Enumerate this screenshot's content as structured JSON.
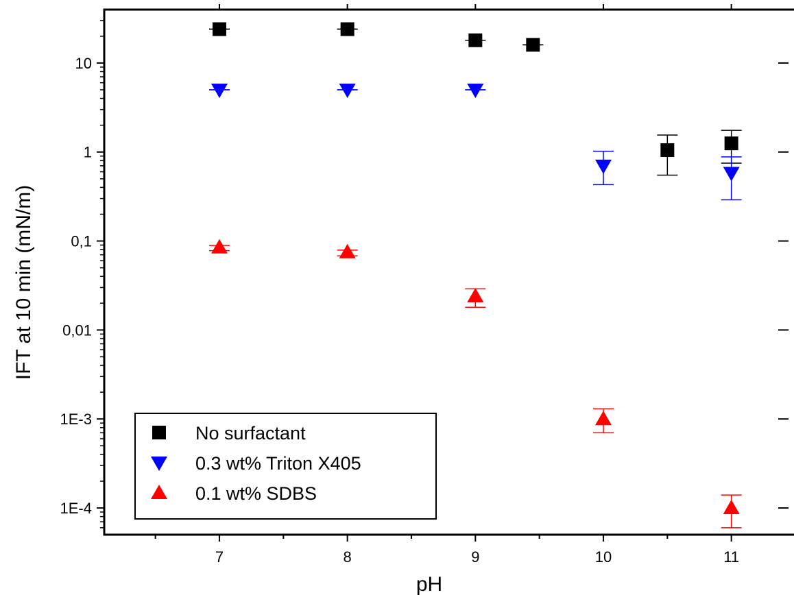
{
  "chart_data": {
    "type": "scatter",
    "title": "",
    "xlabel": "pH",
    "ylabel": "IFT at 10 min (mN/m)",
    "xlim": [
      6.1,
      11.5
    ],
    "ylim_log10": [
      -4.3,
      1.6
    ],
    "y_scale": "log",
    "x_ticks": [
      7,
      8,
      9,
      10,
      11
    ],
    "x_tick_labels": [
      "7",
      "8",
      "9",
      "10",
      "11"
    ],
    "y_ticks": [
      10,
      1,
      0.1,
      0.01,
      0.001,
      0.0001
    ],
    "y_tick_labels": [
      "10",
      "1",
      "0,1",
      "0,01",
      "1E-3",
      "1E-4"
    ],
    "grid": false,
    "legend_position": "bottom-left",
    "series": [
      {
        "name": "No surfactant",
        "marker": "square",
        "color": "#000000",
        "points": [
          {
            "x": 7,
            "y": 24,
            "err_low": 24,
            "err_high": 24
          },
          {
            "x": 8,
            "y": 24,
            "err_low": 24,
            "err_high": 24
          },
          {
            "x": 9,
            "y": 18,
            "err_low": 18,
            "err_high": 18
          },
          {
            "x": 9.45,
            "y": 16,
            "err_low": 16,
            "err_high": 16
          },
          {
            "x": 10.5,
            "y": 1.05,
            "err_low": 0.55,
            "err_high": 1.55
          },
          {
            "x": 11,
            "y": 1.25,
            "err_low": 0.75,
            "err_high": 1.75
          }
        ]
      },
      {
        "name": "0.3 wt% Triton X405",
        "marker": "triangle-down",
        "color": "#0000ff",
        "points": [
          {
            "x": 7,
            "y": 5.0,
            "err_low": 5.0,
            "err_high": 5.0
          },
          {
            "x": 8,
            "y": 5.0,
            "err_low": 5.0,
            "err_high": 5.0
          },
          {
            "x": 9,
            "y": 5.0,
            "err_low": 5.0,
            "err_high": 5.0
          },
          {
            "x": 10,
            "y": 0.7,
            "err_low": 0.43,
            "err_high": 1.02
          },
          {
            "x": 11,
            "y": 0.58,
            "err_low": 0.29,
            "err_high": 0.88
          }
        ]
      },
      {
        "name": "0.1 wt% SDBS",
        "marker": "triangle-up",
        "color": "#ff0000",
        "points": [
          {
            "x": 7,
            "y": 0.085,
            "err_low": 0.078,
            "err_high": 0.089
          },
          {
            "x": 8,
            "y": 0.075,
            "err_low": 0.068,
            "err_high": 0.079
          },
          {
            "x": 9,
            "y": 0.024,
            "err_low": 0.018,
            "err_high": 0.029
          },
          {
            "x": 10,
            "y": 0.001,
            "err_low": 0.0007,
            "err_high": 0.0013
          },
          {
            "x": 11,
            "y": 0.0001,
            "err_low": 6e-05,
            "err_high": 0.00014
          }
        ]
      }
    ]
  }
}
